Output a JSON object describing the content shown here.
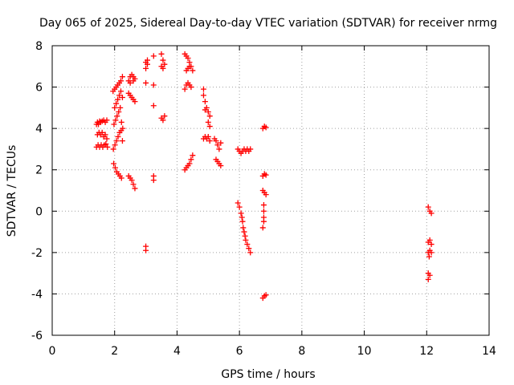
{
  "chart_data": {
    "type": "scatter",
    "title": "Day 065 of 2025, Sidereal Day-to-day VTEC variation (SDTVAR) for receiver nrmg",
    "xlabel": "GPS time / hours",
    "ylabel": "SDTVAR / TECUs",
    "xlim": [
      0,
      14
    ],
    "ylim": [
      -6,
      8
    ],
    "x_ticks": [
      0,
      2,
      4,
      6,
      8,
      10,
      12,
      14
    ],
    "y_ticks": [
      -6,
      -4,
      -2,
      0,
      2,
      4,
      6,
      8
    ],
    "grid": true,
    "marker": "+",
    "series_color": "#ff0000",
    "series": [
      {
        "name": "SDTVAR",
        "points": [
          [
            1.42,
            4.2
          ],
          [
            1.45,
            4.3
          ],
          [
            1.48,
            4.2
          ],
          [
            1.52,
            4.35
          ],
          [
            1.55,
            4.3
          ],
          [
            1.6,
            4.35
          ],
          [
            1.65,
            4.4
          ],
          [
            1.7,
            4.3
          ],
          [
            1.75,
            4.4
          ],
          [
            1.45,
            3.7
          ],
          [
            1.5,
            3.8
          ],
          [
            1.55,
            3.7
          ],
          [
            1.6,
            3.8
          ],
          [
            1.65,
            3.6
          ],
          [
            1.7,
            3.7
          ],
          [
            1.75,
            3.5
          ],
          [
            1.42,
            3.1
          ],
          [
            1.47,
            3.2
          ],
          [
            1.52,
            3.1
          ],
          [
            1.57,
            3.2
          ],
          [
            1.62,
            3.1
          ],
          [
            1.67,
            3.2
          ],
          [
            1.72,
            3.25
          ],
          [
            1.77,
            3.1
          ],
          [
            1.95,
            5.8
          ],
          [
            2.0,
            5.9
          ],
          [
            2.05,
            6.0
          ],
          [
            2.1,
            6.1
          ],
          [
            2.15,
            6.2
          ],
          [
            2.2,
            6.3
          ],
          [
            2.25,
            6.5
          ],
          [
            2.0,
            5.0
          ],
          [
            2.05,
            5.2
          ],
          [
            2.1,
            5.4
          ],
          [
            2.15,
            5.6
          ],
          [
            2.2,
            5.8
          ],
          [
            2.25,
            5.5
          ],
          [
            1.98,
            4.2
          ],
          [
            2.03,
            4.4
          ],
          [
            2.08,
            4.6
          ],
          [
            2.13,
            4.8
          ],
          [
            2.18,
            5.0
          ],
          [
            2.22,
            4.3
          ],
          [
            2.26,
            4.0
          ],
          [
            1.96,
            3.0
          ],
          [
            2.01,
            3.2
          ],
          [
            2.06,
            3.4
          ],
          [
            2.11,
            3.6
          ],
          [
            2.16,
            3.8
          ],
          [
            2.21,
            3.9
          ],
          [
            2.25,
            3.4
          ],
          [
            1.97,
            2.3
          ],
          [
            2.02,
            2.1
          ],
          [
            2.07,
            1.9
          ],
          [
            2.12,
            1.8
          ],
          [
            2.17,
            1.7
          ],
          [
            2.22,
            1.6
          ],
          [
            2.45,
            6.3
          ],
          [
            2.5,
            6.5
          ],
          [
            2.55,
            6.6
          ],
          [
            2.6,
            6.5
          ],
          [
            2.65,
            6.4
          ],
          [
            2.5,
            6.2
          ],
          [
            2.6,
            6.3
          ],
          [
            2.45,
            5.7
          ],
          [
            2.5,
            5.6
          ],
          [
            2.55,
            5.5
          ],
          [
            2.6,
            5.4
          ],
          [
            2.65,
            5.3
          ],
          [
            2.45,
            1.7
          ],
          [
            2.5,
            1.6
          ],
          [
            2.55,
            1.5
          ],
          [
            2.6,
            1.3
          ],
          [
            2.65,
            1.1
          ],
          [
            3.0,
            7.2
          ],
          [
            3.05,
            7.1
          ],
          [
            3.0,
            6.9
          ],
          [
            3.05,
            7.3
          ],
          [
            3.0,
            6.2
          ],
          [
            3.25,
            7.5
          ],
          [
            3.25,
            6.1
          ],
          [
            3.25,
            5.1
          ],
          [
            3.25,
            1.7
          ],
          [
            3.25,
            1.5
          ],
          [
            3.0,
            -1.7
          ],
          [
            3.0,
            -1.9
          ],
          [
            3.5,
            7.6
          ],
          [
            3.55,
            7.3
          ],
          [
            3.5,
            7.0
          ],
          [
            3.55,
            6.9
          ],
          [
            3.6,
            7.1
          ],
          [
            3.5,
            4.5
          ],
          [
            3.55,
            4.4
          ],
          [
            3.6,
            4.6
          ],
          [
            4.25,
            7.6
          ],
          [
            4.3,
            7.5
          ],
          [
            4.35,
            7.4
          ],
          [
            4.4,
            7.2
          ],
          [
            4.45,
            7.0
          ],
          [
            4.5,
            6.8
          ],
          [
            4.3,
            6.8
          ],
          [
            4.35,
            6.9
          ],
          [
            4.4,
            7.0
          ],
          [
            4.25,
            5.9
          ],
          [
            4.3,
            6.1
          ],
          [
            4.35,
            6.2
          ],
          [
            4.4,
            6.1
          ],
          [
            4.45,
            6.0
          ],
          [
            4.25,
            2.0
          ],
          [
            4.3,
            2.1
          ],
          [
            4.35,
            2.2
          ],
          [
            4.4,
            2.3
          ],
          [
            4.45,
            2.5
          ],
          [
            4.5,
            2.7
          ],
          [
            4.85,
            5.9
          ],
          [
            4.85,
            5.6
          ],
          [
            4.9,
            5.3
          ],
          [
            4.95,
            5.0
          ],
          [
            5.0,
            4.8
          ],
          [
            5.05,
            4.6
          ],
          [
            4.9,
            4.9
          ],
          [
            5.0,
            4.3
          ],
          [
            5.05,
            4.1
          ],
          [
            4.85,
            3.5
          ],
          [
            4.9,
            3.6
          ],
          [
            4.95,
            3.5
          ],
          [
            5.0,
            3.6
          ],
          [
            5.05,
            3.4
          ],
          [
            5.2,
            3.5
          ],
          [
            5.25,
            3.4
          ],
          [
            5.3,
            3.2
          ],
          [
            5.35,
            3.0
          ],
          [
            5.4,
            3.3
          ],
          [
            5.25,
            2.5
          ],
          [
            5.3,
            2.4
          ],
          [
            5.35,
            2.3
          ],
          [
            5.4,
            2.2
          ],
          [
            5.95,
            3.0
          ],
          [
            6.0,
            2.9
          ],
          [
            6.05,
            2.8
          ],
          [
            6.1,
            2.9
          ],
          [
            6.15,
            3.0
          ],
          [
            6.2,
            2.9
          ],
          [
            6.25,
            3.0
          ],
          [
            6.3,
            2.9
          ],
          [
            6.35,
            3.0
          ],
          [
            5.95,
            0.4
          ],
          [
            6.0,
            0.2
          ],
          [
            6.05,
            -0.1
          ],
          [
            6.08,
            -0.3
          ],
          [
            6.1,
            -0.5
          ],
          [
            6.12,
            -0.8
          ],
          [
            6.15,
            -1.0
          ],
          [
            6.18,
            -1.2
          ],
          [
            6.2,
            -1.4
          ],
          [
            6.25,
            -1.6
          ],
          [
            6.3,
            -1.8
          ],
          [
            6.35,
            -2.0
          ],
          [
            6.75,
            4.0
          ],
          [
            6.8,
            4.1
          ],
          [
            6.85,
            4.05
          ],
          [
            6.75,
            1.7
          ],
          [
            6.8,
            1.8
          ],
          [
            6.85,
            1.75
          ],
          [
            6.75,
            1.0
          ],
          [
            6.8,
            0.9
          ],
          [
            6.85,
            0.8
          ],
          [
            6.78,
            0.3
          ],
          [
            6.78,
            0.0
          ],
          [
            6.78,
            -0.3
          ],
          [
            6.78,
            -0.5
          ],
          [
            6.75,
            -0.8
          ],
          [
            6.75,
            -4.2
          ],
          [
            6.8,
            -4.1
          ],
          [
            6.85,
            -4.05
          ],
          [
            12.05,
            0.2
          ],
          [
            12.1,
            0.0
          ],
          [
            12.15,
            -0.1
          ],
          [
            12.05,
            -1.5
          ],
          [
            12.1,
            -1.4
          ],
          [
            12.15,
            -1.6
          ],
          [
            12.05,
            -2.0
          ],
          [
            12.1,
            -1.9
          ],
          [
            12.15,
            -2.0
          ],
          [
            12.08,
            -2.2
          ],
          [
            12.05,
            -3.0
          ],
          [
            12.1,
            -3.1
          ],
          [
            12.05,
            -3.3
          ]
        ]
      }
    ]
  }
}
